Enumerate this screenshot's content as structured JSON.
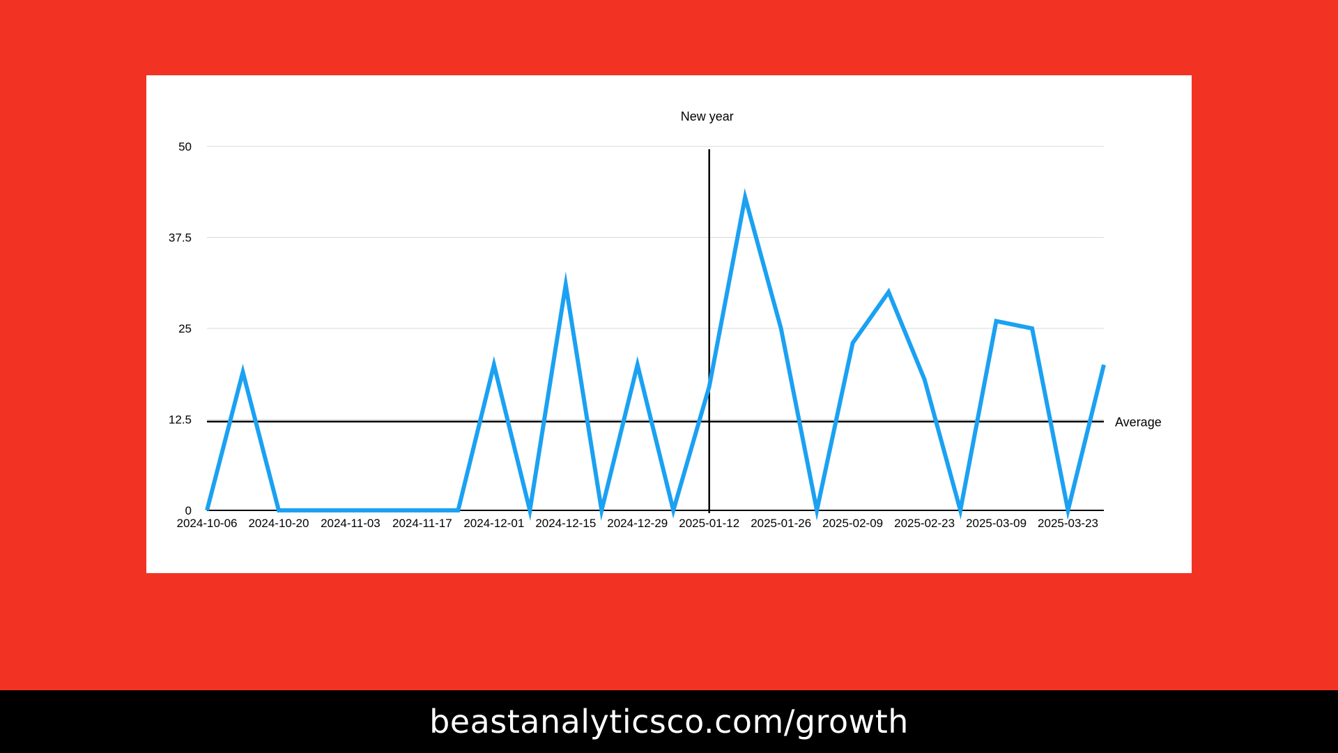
{
  "footer": {
    "url_text": "beastanalyticsco.com/growth"
  },
  "colors": {
    "background": "#f23324",
    "line": "#1ba1f2",
    "reference": "#000000"
  },
  "chart_data": {
    "type": "line",
    "title": "",
    "xlabel": "",
    "ylabel": "",
    "ylim": [
      0,
      50
    ],
    "yticks": [
      0,
      12.5,
      25,
      37.5,
      50
    ],
    "ytick_labels": [
      "0",
      "12.5",
      "25",
      "37.5",
      "50"
    ],
    "grid": true,
    "x": [
      "2024-10-06",
      "2024-10-13",
      "2024-10-20",
      "2024-10-27",
      "2024-11-03",
      "2024-11-10",
      "2024-11-17",
      "2024-11-24",
      "2024-12-01",
      "2024-12-08",
      "2024-12-15",
      "2024-12-22",
      "2024-12-29",
      "2025-01-05",
      "2025-01-12",
      "2025-01-19",
      "2025-01-26",
      "2025-02-02",
      "2025-02-09",
      "2025-02-16",
      "2025-02-23",
      "2025-03-02",
      "2025-03-09",
      "2025-03-16",
      "2025-03-23",
      "2025-03-30"
    ],
    "xtick_labels": [
      "2024-10-06",
      "2024-10-20",
      "2024-11-03",
      "2024-11-17",
      "2024-12-01",
      "2024-12-15",
      "2024-12-29",
      "2025-01-12",
      "2025-01-26",
      "2025-02-09",
      "2025-02-23",
      "2025-03-09",
      "2025-03-23"
    ],
    "series": [
      {
        "values": [
          0,
          19,
          0,
          0,
          0,
          0,
          0,
          0,
          20,
          0,
          31,
          0,
          20,
          0,
          17,
          43,
          25,
          0,
          23,
          30,
          18,
          0,
          26,
          25,
          0,
          20
        ]
      }
    ],
    "average_line": {
      "value": 12.2,
      "label": "Average"
    },
    "vertical_marker": {
      "x": "2025-01-12",
      "label": "New year"
    }
  }
}
